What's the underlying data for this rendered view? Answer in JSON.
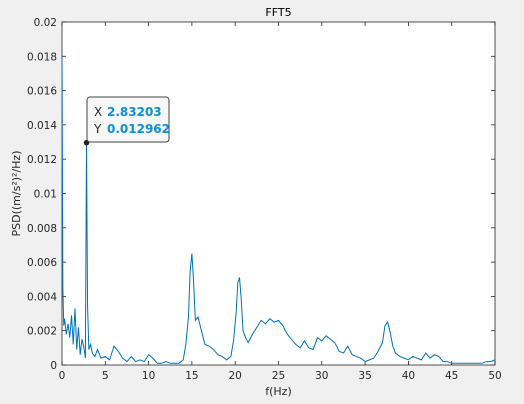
{
  "chart_data": {
    "type": "line",
    "title": "FFT5",
    "xlabel": "f(Hz)",
    "ylabel": "PSD((m/s²)²/Hz)",
    "xlim": [
      0,
      50
    ],
    "ylim": [
      0,
      0.02
    ],
    "x_ticks": [
      0,
      5,
      10,
      15,
      20,
      25,
      30,
      35,
      40,
      45,
      50
    ],
    "x_tick_labels": [
      "0",
      "5",
      "10",
      "15",
      "20",
      "25",
      "30",
      "35",
      "40",
      "45",
      "50"
    ],
    "y_ticks": [
      0,
      0.002,
      0.004,
      0.006,
      0.008,
      0.01,
      0.012,
      0.014,
      0.016,
      0.018,
      0.02
    ],
    "y_tick_labels": [
      "0",
      "0.002",
      "0.004",
      "0.006",
      "0.008",
      "0.01",
      "0.012",
      "0.014",
      "0.016",
      "0.018",
      "0.02"
    ],
    "grid": false,
    "line_color": "#0072bd",
    "series": [
      {
        "x": [
          0,
          0.1,
          0.2,
          0.3,
          0.5,
          0.7,
          0.9,
          1.1,
          1.3,
          1.5,
          1.7,
          1.9,
          2.1,
          2.3,
          2.5,
          2.7,
          2.83,
          2.95,
          3.1,
          3.3,
          3.5,
          3.8,
          4.1,
          4.5,
          5.0,
          5.5,
          6.0,
          6.5,
          7.0,
          7.5,
          8.0,
          8.5,
          9.0,
          9.5,
          10.0,
          10.5,
          11.0,
          11.5,
          12.0,
          12.5,
          13.0,
          13.5,
          14.0,
          14.3,
          14.6,
          14.8,
          15.0,
          15.2,
          15.4,
          15.7,
          16.0,
          16.5,
          17.0,
          17.5,
          18.0,
          18.5,
          19.0,
          19.5,
          19.8,
          20.1,
          20.3,
          20.5,
          20.7,
          20.9,
          21.2,
          21.5,
          22.0,
          22.5,
          23.0,
          23.5,
          24.0,
          24.5,
          25.0,
          25.5,
          26.0,
          26.5,
          27.0,
          27.5,
          28.0,
          28.5,
          29.0,
          29.5,
          30.0,
          30.5,
          31.0,
          31.5,
          32.0,
          32.5,
          33.0,
          33.5,
          34.0,
          34.5,
          35.0,
          35.5,
          36.0,
          36.5,
          37.0,
          37.3,
          37.6,
          37.9,
          38.2,
          38.5,
          39.0,
          39.5,
          40.0,
          40.5,
          41.0,
          41.5,
          42.0,
          42.5,
          43.0,
          43.5,
          44.0,
          44.5,
          45.0,
          45.5,
          46.0,
          46.5,
          47.0,
          47.5,
          48.0,
          48.5,
          49.0,
          49.5,
          50.0
        ],
        "y": [
          0.018,
          0.0045,
          0.0023,
          0.0027,
          0.0018,
          0.0024,
          0.0016,
          0.0029,
          0.0012,
          0.0033,
          0.0009,
          0.0022,
          0.0006,
          0.0015,
          0.0011,
          0.0004,
          0.012962,
          0.0035,
          0.0009,
          0.0012,
          0.0007,
          0.0005,
          0.0009,
          0.0004,
          0.0005,
          0.0003,
          0.0011,
          0.0008,
          0.0004,
          0.0002,
          0.0005,
          0.0002,
          0.0003,
          0.0002,
          0.0006,
          0.0004,
          0.0001,
          0.0001,
          0.0002,
          0.0001,
          0.0001,
          0.0001,
          0.0003,
          0.0012,
          0.0028,
          0.0055,
          0.0065,
          0.0048,
          0.0026,
          0.0028,
          0.0022,
          0.0012,
          0.0011,
          0.0009,
          0.0006,
          0.0005,
          0.0003,
          0.0005,
          0.0014,
          0.003,
          0.0048,
          0.0051,
          0.0038,
          0.002,
          0.0016,
          0.0013,
          0.0018,
          0.0022,
          0.0026,
          0.0024,
          0.0027,
          0.0025,
          0.0026,
          0.0023,
          0.0018,
          0.0015,
          0.0012,
          0.001,
          0.0014,
          0.001,
          0.0009,
          0.0016,
          0.0014,
          0.0017,
          0.0015,
          0.0013,
          0.0008,
          0.0007,
          0.0011,
          0.0006,
          0.0005,
          0.0004,
          0.0002,
          0.0003,
          0.0004,
          0.0008,
          0.0013,
          0.0023,
          0.0025,
          0.0019,
          0.0011,
          0.0007,
          0.0005,
          0.0004,
          0.0003,
          0.0005,
          0.0004,
          0.0003,
          0.0007,
          0.0004,
          0.0006,
          0.0005,
          0.0002,
          0.0002,
          0.0001,
          0.0001,
          0.0001,
          0.0001,
          0.0001,
          0.0001,
          0.0001,
          0.0001,
          0.0002,
          0.0002,
          0.0003
        ]
      }
    ],
    "datatip": {
      "x_label": "X",
      "x_value": "2.83203",
      "y_label": "Y",
      "y_value": "0.012962",
      "x": 2.83203,
      "y": 0.012962
    }
  }
}
